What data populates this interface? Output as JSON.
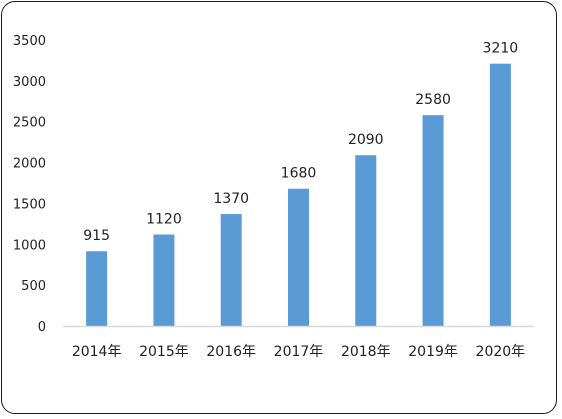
{
  "chart_data": {
    "type": "bar",
    "title": "",
    "xlabel": "",
    "ylabel": "",
    "categories": [
      "2014年",
      "2015年",
      "2016年",
      "2017年",
      "2018年",
      "2019年",
      "2020年"
    ],
    "values": [
      915,
      1120,
      1370,
      1680,
      2090,
      2580,
      3210
    ],
    "data_labels": [
      "915",
      "1120",
      "1370",
      "1680",
      "2090",
      "2580",
      "3210"
    ],
    "ylim": [
      0,
      3500
    ],
    "yticks": [
      0,
      500,
      1000,
      1500,
      2000,
      2500,
      3000,
      3500
    ],
    "ytick_labels": [
      "0",
      "500",
      "1000",
      "1500",
      "2000",
      "2500",
      "3000",
      "3500"
    ],
    "grid": false,
    "legend": "none",
    "bar_color": "#5b9bd5",
    "axis_color": "#d9d9d9"
  }
}
